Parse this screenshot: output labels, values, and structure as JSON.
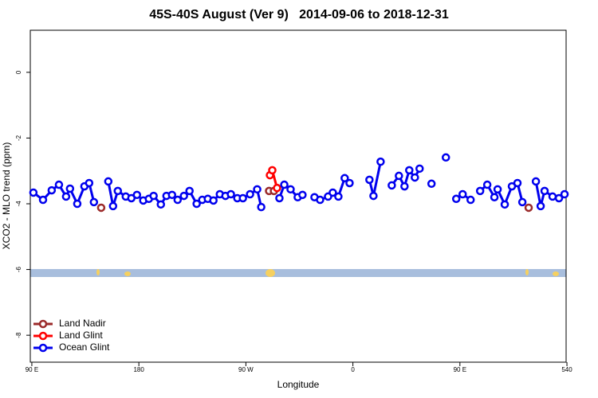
{
  "chart_data": {
    "type": "line",
    "title": "45S-40S August (Ver 9)   2014-09-06 to 2018-12-31",
    "xlabel": "Longitude",
    "ylabel": "XCO2 - MLO trend (ppm)",
    "xlim": [
      88.7,
      539.3
    ],
    "ylim": [
      -8.82,
      1.28
    ],
    "xticks": [
      {
        "value": 90,
        "label": "90 E"
      },
      180,
      {
        "value": 270,
        "label": "90 W"
      },
      {
        "value": 360,
        "label": "0"
      },
      {
        "value": 450,
        "label": "90 E"
      },
      540
    ],
    "yticks": [
      -8,
      -6,
      -4,
      -2,
      0
    ],
    "legend": "bottom-left",
    "series": [
      {
        "name": "Land Nadir",
        "color": "#9b2a2a",
        "x": [
          148.3,
          null,
          289.5,
          null,
          293.6,
          null,
          507.8
        ],
        "values": [
          -4.12,
          null,
          -3.61,
          null,
          -3.61,
          null,
          -4.12
        ]
      },
      {
        "name": "Land Glint",
        "color": "#ff0000",
        "x": [
          290.2,
          292.2,
          296.2
        ],
        "values": [
          -3.13,
          -2.98,
          -3.52
        ]
      },
      {
        "name": "Ocean Glint",
        "color": "#0000ee",
        "x": [
          91.3,
          99.4,
          106.7,
          112.8,
          118.8,
          122.1,
          128.2,
          134.2,
          138.2,
          142.2,
          null,
          154.3,
          158.3,
          162.3,
          169,
          173.7,
          178.4,
          183.7,
          188.4,
          192.4,
          198.5,
          203.2,
          207.9,
          212.6,
          217.9,
          222.6,
          228.6,
          233.3,
          238,
          242.7,
          248.1,
          252.8,
          257.4,
          262.8,
          267.5,
          273.5,
          279.5,
          282.9,
          null,
          298.2,
          302.3,
          307.6,
          313.6,
          317.6,
          null,
          327.7,
          332.4,
          339.1,
          343.1,
          347.8,
          353.1,
          357.2,
          null,
          373.9,
          377.3,
          383.3,
          null,
          392.7,
          398.7,
          403.4,
          407.4,
          412.1,
          416.1,
          null,
          426.1,
          null,
          438.2,
          null,
          446.9,
          452.3,
          459,
          null,
          467,
          473,
          479,
          481.7,
          487.7,
          493.7,
          498.4,
          502.5,
          null,
          513.9,
          517.9,
          521.2,
          527.9,
          533.3,
          538
        ],
        "values": [
          -3.66,
          -3.88,
          -3.59,
          -3.42,
          -3.78,
          -3.54,
          -4.0,
          -3.47,
          -3.37,
          -3.95,
          null,
          -3.32,
          -4.07,
          -3.61,
          -3.78,
          -3.83,
          -3.73,
          -3.9,
          -3.85,
          -3.76,
          -4.02,
          -3.76,
          -3.73,
          -3.88,
          -3.76,
          -3.61,
          -4.0,
          -3.88,
          -3.85,
          -3.9,
          -3.71,
          -3.76,
          -3.71,
          -3.83,
          -3.83,
          -3.71,
          -3.56,
          -4.1,
          null,
          -3.83,
          -3.42,
          -3.56,
          -3.8,
          -3.73,
          null,
          -3.8,
          -3.88,
          -3.78,
          -3.66,
          -3.78,
          -3.22,
          -3.37,
          null,
          -3.27,
          -3.76,
          -2.72,
          null,
          -3.44,
          -3.15,
          -3.47,
          -2.98,
          -3.2,
          -2.93,
          null,
          -3.39,
          null,
          -2.59,
          null,
          -3.85,
          -3.71,
          -3.88,
          null,
          -3.61,
          -3.42,
          -3.8,
          -3.56,
          -4.02,
          -3.47,
          -3.37,
          -3.95,
          null,
          -3.32,
          -4.07,
          -3.61,
          -3.78,
          -3.83,
          -3.71
        ]
      }
    ]
  }
}
